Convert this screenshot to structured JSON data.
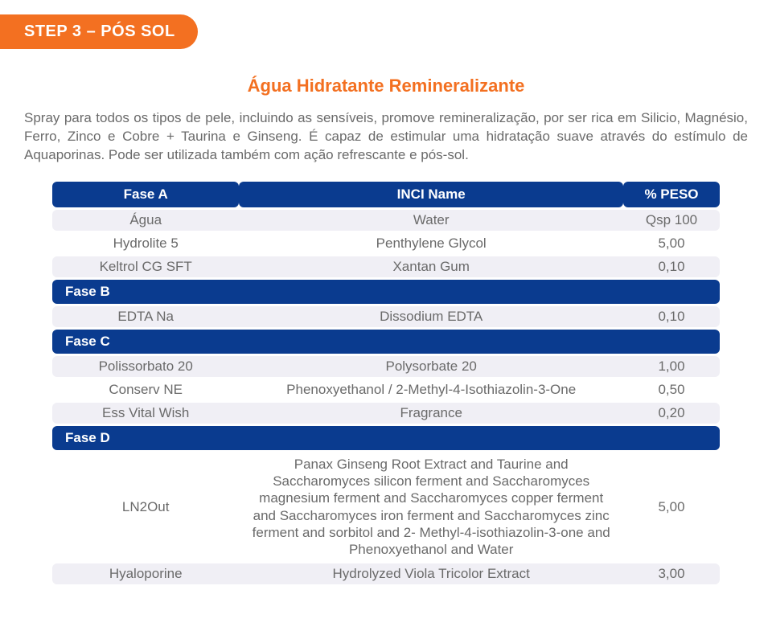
{
  "step_tag": "STEP 3 – PÓS SOL",
  "product_title": "Água Hidratante Remineralizante",
  "description": "Spray para todos os tipos de pele, incluindo as sensíveis, promove remineralização, por ser rica em Silicio, Magnésio, Ferro, Zinco e Cobre + Taurina e Ginseng. É capaz de estimular uma hidratação suave através do estímulo de Aquaporinas. Pode ser utilizada também com ação refrescante e pós-sol.",
  "headers": {
    "c1": "Fase A",
    "c2": "INCI Name",
    "c3": "% PESO"
  },
  "rows": [
    {
      "type": "data",
      "alt": true,
      "name": "Água",
      "inci": "Water",
      "peso": "Qsp 100"
    },
    {
      "type": "data",
      "alt": false,
      "name": "Hydrolite 5",
      "inci": "Penthylene Glycol",
      "peso": "5,00"
    },
    {
      "type": "data",
      "alt": true,
      "name": "Keltrol CG SFT",
      "inci": "Xantan Gum",
      "peso": "0,10"
    },
    {
      "type": "phase",
      "label": "Fase B"
    },
    {
      "type": "data",
      "alt": true,
      "name": "EDTA Na",
      "inci": "Dissodium EDTA",
      "peso": "0,10"
    },
    {
      "type": "phase",
      "label": "Fase C"
    },
    {
      "type": "data",
      "alt": true,
      "name": "Polissorbato 20",
      "inci": "Polysorbate 20",
      "peso": "1,00"
    },
    {
      "type": "data",
      "alt": false,
      "name": "Conserv NE",
      "inci": "Phenoxyethanol / 2-Methyl-4-Isothiazolin-3-One",
      "peso": "0,50"
    },
    {
      "type": "data",
      "alt": true,
      "name": "Ess Vital Wish",
      "inci": "Fragrance",
      "peso": "0,20"
    },
    {
      "type": "phase",
      "label": "Fase D"
    },
    {
      "type": "data",
      "alt": false,
      "long": true,
      "name": "LN2Out",
      "inci": "Panax Ginseng Root Extract and Taurine and Saccharomyces silicon ferment and Saccharomyces magnesium ferment and Saccharomyces copper ferment and Saccharomyces iron ferment and Saccharomyces zinc ferment and sorbitol and 2- Methyl-4-isothiazolin-3-one and Phenoxyethanol and Water",
      "peso": "5,00"
    },
    {
      "type": "data",
      "alt": true,
      "name": "Hyaloporine",
      "inci": "Hydrolyzed Viola Tricolor Extract",
      "peso": "3,00"
    }
  ],
  "colors": {
    "accent": "#f37021",
    "header_bg": "#0a3b8f",
    "text": "#6a6a6a",
    "alt_row": "#f0eff5",
    "background": "#ffffff"
  }
}
